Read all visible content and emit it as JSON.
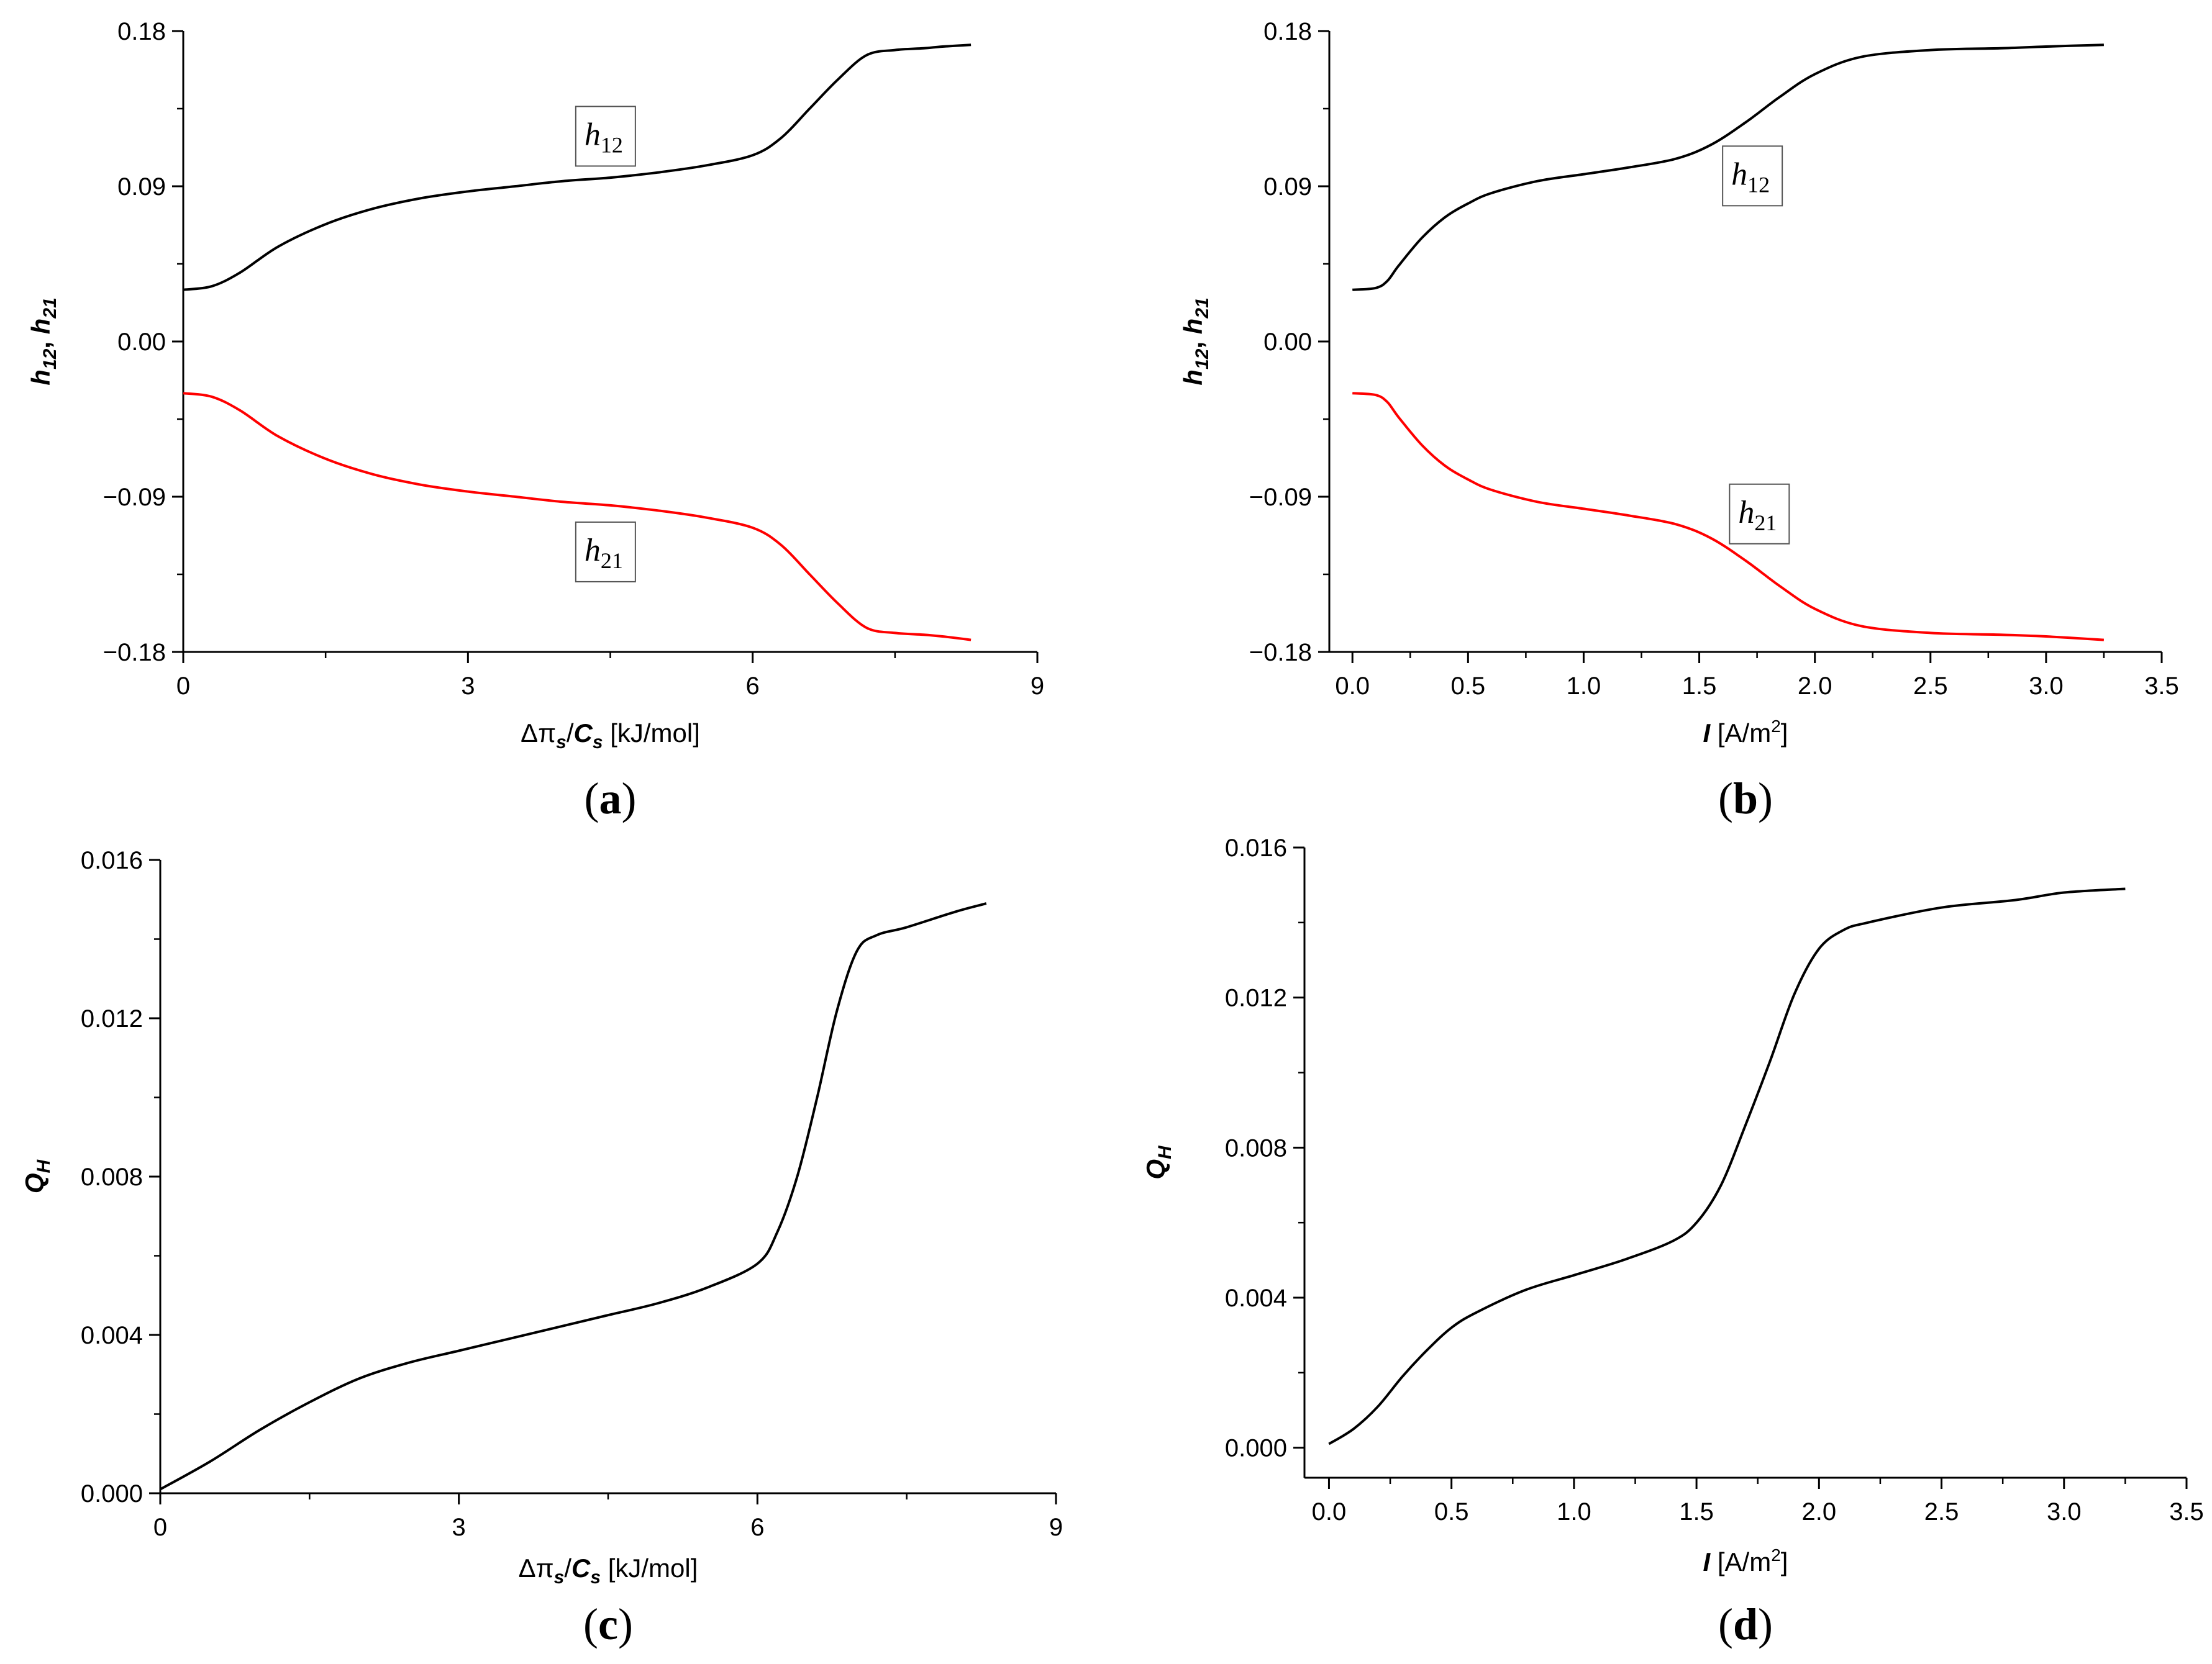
{
  "colors": {
    "black_series": "#000000",
    "red_series": "#ff0000",
    "axis": "#000000"
  },
  "chart_data": [
    {
      "id": "a",
      "type": "line",
      "panel_label": "a",
      "ylabel": {
        "main": "h",
        "sub1": "12",
        "sep": ", ",
        "main2": "h",
        "sub2": "21"
      },
      "xlabel": {
        "pre": "Δπ",
        "sub": "s",
        "mid": "/",
        "bold": "C",
        "sub2": "s",
        "unit": " [kJ/mol]"
      },
      "xlim": [
        0,
        9
      ],
      "ylim": [
        -0.18,
        0.18
      ],
      "xticks": [
        0,
        3,
        6,
        9
      ],
      "xtick_labels": [
        "0",
        "3",
        "6",
        "9"
      ],
      "yticks": [
        0.18,
        0.09,
        0.0,
        -0.09,
        -0.18
      ],
      "ytick_labels": [
        "0.18",
        "0.09",
        "0.00",
        "−0.09",
        "−0.18"
      ],
      "series": [
        {
          "name": "h12",
          "color": "#000000",
          "x": [
            0,
            0.3,
            0.6,
            1.0,
            1.5,
            2.0,
            2.5,
            3.0,
            3.5,
            4.0,
            4.5,
            5.0,
            5.5,
            6.0,
            6.3,
            6.6,
            6.9,
            7.2,
            7.5,
            7.8,
            8.0,
            8.3
          ],
          "y": [
            0.03,
            0.032,
            0.04,
            0.055,
            0.068,
            0.077,
            0.083,
            0.087,
            0.09,
            0.093,
            0.095,
            0.098,
            0.102,
            0.108,
            0.118,
            0.135,
            0.152,
            0.166,
            0.169,
            0.17,
            0.171,
            0.172
          ]
        },
        {
          "name": "h21",
          "color": "#ff0000",
          "x": [
            0,
            0.3,
            0.6,
            1.0,
            1.5,
            2.0,
            2.5,
            3.0,
            3.5,
            4.0,
            4.5,
            5.0,
            5.5,
            6.0,
            6.3,
            6.6,
            6.9,
            7.2,
            7.5,
            7.8,
            8.0,
            8.3
          ],
          "y": [
            -0.03,
            -0.032,
            -0.04,
            -0.055,
            -0.068,
            -0.077,
            -0.083,
            -0.087,
            -0.09,
            -0.093,
            -0.095,
            -0.098,
            -0.102,
            -0.108,
            -0.118,
            -0.135,
            -0.152,
            -0.166,
            -0.169,
            -0.17,
            -0.171,
            -0.173
          ]
        }
      ],
      "annotations": [
        {
          "main": "h",
          "sub": "12",
          "x": 4.45,
          "y": 0.119
        },
        {
          "main": "h",
          "sub": "21",
          "x": 4.45,
          "y": -0.122
        }
      ]
    },
    {
      "id": "b",
      "type": "line",
      "panel_label": "b",
      "ylabel": {
        "main": "h",
        "sub1": "12",
        "sep": ", ",
        "main2": "h",
        "sub2": "21"
      },
      "xlabel": {
        "bold": "I",
        "unit": " [A/m",
        "sup": "2",
        "close": "]"
      },
      "xlim": [
        -0.1,
        3.5
      ],
      "ylim": [
        -0.18,
        0.18
      ],
      "xticks": [
        0.0,
        0.5,
        1.0,
        1.5,
        2.0,
        2.5,
        3.0,
        3.5
      ],
      "xtick_labels": [
        "0.0",
        "0.5",
        "1.0",
        "1.5",
        "2.0",
        "2.5",
        "3.0",
        "3.5"
      ],
      "yticks": [
        0.18,
        0.09,
        0.0,
        -0.09,
        -0.18
      ],
      "ytick_labels": [
        "0.18",
        "0.09",
        "0.00",
        "−0.09",
        "−0.18"
      ],
      "series": [
        {
          "name": "h12",
          "color": "#000000",
          "x": [
            0,
            0.1,
            0.15,
            0.2,
            0.3,
            0.4,
            0.5,
            0.6,
            0.8,
            1.0,
            1.2,
            1.4,
            1.55,
            1.7,
            1.85,
            2.0,
            2.2,
            2.5,
            2.8,
            3.0,
            3.25
          ],
          "y": [
            0.03,
            0.031,
            0.035,
            0.044,
            0.06,
            0.072,
            0.08,
            0.086,
            0.093,
            0.097,
            0.101,
            0.106,
            0.114,
            0.127,
            0.142,
            0.155,
            0.165,
            0.169,
            0.17,
            0.171,
            0.172
          ]
        },
        {
          "name": "h21",
          "color": "#ff0000",
          "x": [
            0,
            0.1,
            0.15,
            0.2,
            0.3,
            0.4,
            0.5,
            0.6,
            0.8,
            1.0,
            1.2,
            1.4,
            1.55,
            1.7,
            1.85,
            2.0,
            2.2,
            2.5,
            2.8,
            3.0,
            3.25
          ],
          "y": [
            -0.03,
            -0.031,
            -0.035,
            -0.044,
            -0.06,
            -0.072,
            -0.08,
            -0.086,
            -0.093,
            -0.097,
            -0.101,
            -0.106,
            -0.114,
            -0.127,
            -0.142,
            -0.155,
            -0.165,
            -0.169,
            -0.17,
            -0.171,
            -0.173
          ]
        }
      ],
      "annotations": [
        {
          "main": "h",
          "sub": "12",
          "x": 1.73,
          "y": 0.096
        },
        {
          "main": "h",
          "sub": "21",
          "x": 1.76,
          "y": -0.1
        }
      ]
    },
    {
      "id": "c",
      "type": "line",
      "panel_label": "c",
      "ylabel": {
        "bold": "Q",
        "sub": "H"
      },
      "xlabel": {
        "pre": "Δπ",
        "sub": "s",
        "mid": "/",
        "bold": "C",
        "sub2": "s",
        "unit": " [kJ/mol]"
      },
      "xlim": [
        0,
        9
      ],
      "ylim": [
        0,
        0.016
      ],
      "xticks": [
        0,
        3,
        6,
        9
      ],
      "xtick_labels": [
        "0",
        "3",
        "6",
        "9"
      ],
      "yticks": [
        0.016,
        0.012,
        0.008,
        0.004,
        0.0
      ],
      "ytick_labels": [
        "0.016",
        "0.012",
        "0.008",
        "0.004",
        "0.000"
      ],
      "series": [
        {
          "name": "QH",
          "color": "#000000",
          "x": [
            0,
            0.5,
            1.0,
            1.5,
            2.0,
            2.5,
            3.0,
            3.5,
            4.0,
            4.5,
            5.0,
            5.5,
            6.0,
            6.2,
            6.4,
            6.6,
            6.8,
            7.0,
            7.2,
            7.5,
            8.0,
            8.3
          ],
          "y": [
            0.0001,
            0.0008,
            0.0016,
            0.0023,
            0.0029,
            0.0033,
            0.0036,
            0.0039,
            0.0042,
            0.0045,
            0.0048,
            0.0052,
            0.0058,
            0.0066,
            0.008,
            0.01,
            0.0122,
            0.0137,
            0.0141,
            0.0143,
            0.0147,
            0.0149
          ]
        }
      ],
      "annotations": []
    },
    {
      "id": "d",
      "type": "line",
      "panel_label": "d",
      "ylabel": {
        "bold": "Q",
        "sub": "H"
      },
      "xlabel": {
        "bold": "I",
        "unit": " [A/m",
        "sup": "2",
        "close": "]"
      },
      "xlim": [
        -0.1,
        3.5
      ],
      "ylim": [
        -0.0008,
        0.016
      ],
      "xticks": [
        0.0,
        0.5,
        1.0,
        1.5,
        2.0,
        2.5,
        3.0,
        3.5
      ],
      "xtick_labels": [
        "0.0",
        "0.5",
        "1.0",
        "1.5",
        "2.0",
        "2.5",
        "3.0",
        "3.5"
      ],
      "yticks": [
        0.016,
        0.012,
        0.008,
        0.004,
        0.0
      ],
      "ytick_labels": [
        "0.016",
        "0.012",
        "0.008",
        "0.004",
        "0.000"
      ],
      "series": [
        {
          "name": "QH",
          "color": "#000000",
          "x": [
            0,
            0.1,
            0.2,
            0.3,
            0.4,
            0.5,
            0.6,
            0.8,
            1.0,
            1.2,
            1.4,
            1.5,
            1.6,
            1.7,
            1.8,
            1.9,
            2.0,
            2.1,
            2.2,
            2.5,
            2.8,
            3.0,
            3.25
          ],
          "y": [
            0.0001,
            0.0005,
            0.0011,
            0.0019,
            0.0026,
            0.0032,
            0.0036,
            0.0042,
            0.0046,
            0.005,
            0.0055,
            0.006,
            0.007,
            0.0086,
            0.0103,
            0.0121,
            0.0133,
            0.0138,
            0.014,
            0.0144,
            0.0146,
            0.0148,
            0.0149
          ]
        }
      ],
      "annotations": []
    }
  ]
}
